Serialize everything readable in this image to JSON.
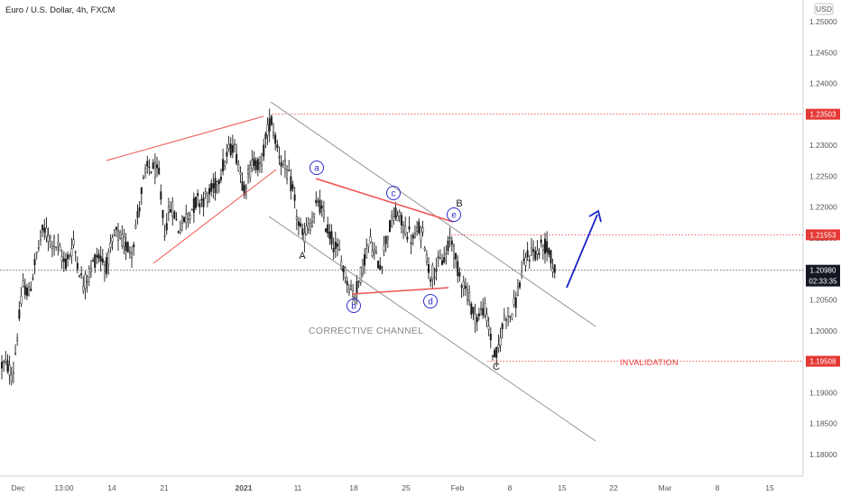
{
  "chart_data": {
    "type": "candlestick",
    "title": "Euro / U.S. Dollar, 4h, FXCM",
    "currency_badge": "USD",
    "y_tick_labels": [
      "1.25000",
      "1.24500",
      "1.24000",
      "1.23500",
      "1.23000",
      "1.22500",
      "1.22000",
      "1.21500",
      "1.21000",
      "1.20500",
      "1.20000",
      "1.19500",
      "1.19000",
      "1.18500",
      "1.18000"
    ],
    "x_tick_labels": [
      "Dec",
      "13:00",
      "14",
      "21",
      "2021",
      "11",
      "18",
      "25",
      "Feb",
      "8",
      "15",
      "22",
      "Mar",
      "8",
      "15"
    ],
    "ylim": [
      1.1765,
      1.2535
    ],
    "price_levels": [
      {
        "label": "1.23503",
        "value": 1.23503,
        "color": "#e53935"
      },
      {
        "label": "1.21553",
        "value": 1.21553,
        "color": "#e53935"
      },
      {
        "label": "1.19508",
        "value": 1.19508,
        "color": "#e53935"
      }
    ],
    "last_price": {
      "label": "1.20980",
      "value": 1.2098,
      "countdown": "02:33:35",
      "color": "#131722"
    },
    "price_path": [
      [
        8,
        1.1945
      ],
      [
        14,
        1.1925
      ],
      [
        20,
        1.2005
      ],
      [
        26,
        1.2075
      ],
      [
        32,
        1.2058
      ],
      [
        40,
        1.2118
      ],
      [
        48,
        1.2165
      ],
      [
        56,
        1.2148
      ],
      [
        64,
        1.2135
      ],
      [
        72,
        1.2108
      ],
      [
        82,
        1.214
      ],
      [
        92,
        1.2072
      ],
      [
        100,
        1.2098
      ],
      [
        108,
        1.2125
      ],
      [
        118,
        1.2105
      ],
      [
        128,
        1.2158
      ],
      [
        138,
        1.214
      ],
      [
        146,
        1.213
      ],
      [
        152,
        1.218
      ],
      [
        158,
        1.2235
      ],
      [
        164,
        1.2265
      ],
      [
        170,
        1.2262
      ],
      [
        176,
        1.2252
      ],
      [
        182,
        1.216
      ],
      [
        190,
        1.2205
      ],
      [
        198,
        1.2165
      ],
      [
        208,
        1.2188
      ],
      [
        218,
        1.221
      ],
      [
        228,
        1.2215
      ],
      [
        238,
        1.2232
      ],
      [
        246,
        1.2262
      ],
      [
        252,
        1.2285
      ],
      [
        258,
        1.2302
      ],
      [
        264,
        1.2275
      ],
      [
        270,
        1.223
      ],
      [
        276,
        1.2255
      ],
      [
        282,
        1.2278
      ],
      [
        288,
        1.2262
      ],
      [
        294,
        1.2305
      ],
      [
        300,
        1.2345
      ],
      [
        306,
        1.2305
      ],
      [
        312,
        1.2275
      ],
      [
        318,
        1.2255
      ],
      [
        324,
        1.223
      ],
      [
        330,
        1.2178
      ],
      [
        336,
        1.2148
      ],
      [
        342,
        1.2172
      ],
      [
        348,
        1.2178
      ],
      [
        352,
        1.2215
      ],
      [
        358,
        1.2185
      ],
      [
        364,
        1.216
      ],
      [
        370,
        1.214
      ],
      [
        376,
        1.2125
      ],
      [
        382,
        1.2095
      ],
      [
        388,
        1.207
      ],
      [
        393,
        1.2058
      ],
      [
        398,
        1.208
      ],
      [
        404,
        1.2118
      ],
      [
        410,
        1.2145
      ],
      [
        416,
        1.212
      ],
      [
        422,
        1.2105
      ],
      [
        428,
        1.215
      ],
      [
        434,
        1.2175
      ],
      [
        440,
        1.219
      ],
      [
        446,
        1.217
      ],
      [
        452,
        1.216
      ],
      [
        458,
        1.2145
      ],
      [
        464,
        1.2165
      ],
      [
        470,
        1.2152
      ],
      [
        476,
        1.209
      ],
      [
        482,
        1.21
      ],
      [
        488,
        1.211
      ],
      [
        494,
        1.212
      ],
      [
        500,
        1.2155
      ],
      [
        506,
        1.2105
      ],
      [
        512,
        1.2082
      ],
      [
        518,
        1.2062
      ],
      [
        524,
        1.203
      ],
      [
        530,
        1.202
      ],
      [
        536,
        1.204
      ],
      [
        542,
        1.2005
      ],
      [
        547,
        1.1955
      ],
      [
        552,
        1.1965
      ],
      [
        556,
        1.2
      ],
      [
        560,
        1.203
      ],
      [
        566,
        1.2025
      ],
      [
        572,
        1.205
      ],
      [
        578,
        1.2092
      ],
      [
        584,
        1.2118
      ],
      [
        590,
        1.213
      ],
      [
        596,
        1.2125
      ],
      [
        602,
        1.214
      ],
      [
        608,
        1.213
      ],
      [
        614,
        1.2098
      ]
    ]
  },
  "annotations": {
    "wave_A": "A",
    "wave_B": "B",
    "wave_C": "C",
    "sub_a": "a",
    "sub_b": "b",
    "sub_c": "c",
    "sub_d": "d",
    "sub_e": "e",
    "corrective_channel": "CORRECTIVE CHANNEL",
    "invalidation": "INVALIDATION"
  },
  "colors": {
    "candle": "#1a1a1a",
    "trendline_red": "#ef5350",
    "channel_gray": "#8a8a8a",
    "projection_blue": "#1a23c9",
    "level_red": "#e53935",
    "grid_axis": "#cfcfcf"
  }
}
